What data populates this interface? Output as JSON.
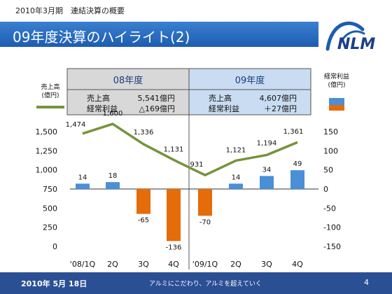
{
  "header": {
    "label": "2010年3月期　連結決算の概要",
    "title": "09年度決算のハイライト(2)"
  },
  "logo": {
    "text": "NLM"
  },
  "footer": {
    "date": "2010年 5月 18日",
    "slogan": "アルミにこだわり、アルミを超えていく",
    "page": "4"
  },
  "colors": {
    "title_bar": "#2a6cc4",
    "footer_bar": "#2b4f93",
    "line": "#76933c",
    "bar_positive": "#4a8fd8",
    "bar_negative": "#e46c0a",
    "panel_fy08": "#d8d8d8",
    "panel_fy09": "#c9dcf2"
  },
  "chart_data": {
    "type": "bar+line",
    "categories": [
      "'08/1Q",
      "2Q",
      "3Q",
      "4Q",
      "'09/1Q",
      "2Q",
      "3Q",
      "4Q"
    ],
    "series": [
      {
        "name": "売上高",
        "unit": "(億円)",
        "type": "line",
        "axis": "left",
        "values": [
          1474,
          1600,
          1336,
          1131,
          931,
          1121,
          1194,
          1361
        ]
      },
      {
        "name": "経常利益",
        "unit": "(億円)",
        "type": "bar",
        "axis": "right",
        "values": [
          14,
          18,
          -65,
          -136,
          -70,
          14,
          34,
          49
        ]
      }
    ],
    "left_axis": {
      "ticks": [
        "1,500",
        "1,250",
        "1,000",
        "750",
        "500",
        "250",
        "0"
      ],
      "min": 0,
      "max": 1500
    },
    "right_axis": {
      "ticks": [
        "150",
        "100",
        "50",
        "0",
        "-50",
        "-100",
        "-150"
      ],
      "min": -150,
      "max": 150
    },
    "legend": {
      "position": "left",
      "line_label": "売上高",
      "bar_label": "経常利益",
      "unit": "(億円)"
    },
    "panels": [
      {
        "title": "08年度",
        "rows": [
          {
            "label": "売上高",
            "value": "5,541億円"
          },
          {
            "label": "経常利益",
            "value": "△169億円"
          }
        ]
      },
      {
        "title": "09年度",
        "rows": [
          {
            "label": "売上高",
            "value": "4,607億円"
          },
          {
            "label": "経常利益",
            "value": "＋27億円"
          }
        ]
      }
    ],
    "grid": false
  }
}
